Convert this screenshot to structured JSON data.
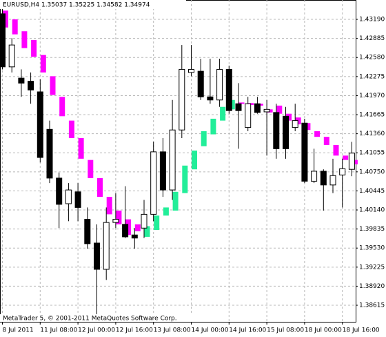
{
  "chart_data": {
    "type": "candlestick",
    "title": "EURUSD,H4  1.35037 1.35225 1.34582 1.34974",
    "footer": "MetaTrader 5, © 2001-2011 MetaQuotes Software Corp.",
    "categories": [
      "8 Jul 2011",
      null,
      null,
      null,
      "11 Jul 08:00",
      null,
      null,
      null,
      "12 Jul 00:00",
      null,
      null,
      null,
      "12 Jul 16:00",
      null,
      null,
      null,
      "13 Jul 08:00",
      null,
      null,
      null,
      "14 Jul 00:00",
      null,
      null,
      null,
      "14 Jul 16:00",
      null,
      null,
      null,
      "15 Jul 08:00",
      null,
      null,
      null,
      "18 Jul 00:00",
      null,
      null,
      null,
      "18 Jul 16:00",
      null
    ],
    "candles": {
      "up_color": "#ffffff",
      "down_color": "#000000",
      "line_color": "#000000",
      "open": [
        1.4328,
        1.4243,
        1.4225,
        1.422,
        1.4203,
        1.4143,
        1.4065,
        1.4024,
        1.4043,
        1.3999,
        1.3961,
        1.3919,
        1.3994,
        1.3991,
        1.3974,
        1.3985,
        1.4007,
        1.4107,
        1.4046,
        1.4142,
        1.4234,
        1.4236,
        1.4195,
        1.419,
        1.4239,
        1.4184,
        1.4146,
        1.4184,
        1.4171,
        1.417,
        1.4164,
        1.4146,
        1.4153,
        1.406,
        1.4076,
        1.4054,
        1.407,
        1.4079
      ],
      "high": [
        1.4339,
        1.4289,
        1.4239,
        1.4234,
        1.4223,
        1.4157,
        1.4074,
        1.4057,
        1.4057,
        1.4018,
        1.3991,
        1.4018,
        1.4041,
        1.4052,
        1.3985,
        1.403,
        1.4123,
        1.4129,
        1.419,
        1.4278,
        1.4278,
        1.4256,
        1.4256,
        1.4256,
        1.4245,
        1.4217,
        1.4195,
        1.4195,
        1.419,
        1.4184,
        1.4179,
        1.4184,
        1.416,
        1.4112,
        1.4079,
        1.4096,
        1.4096,
        1.4123
      ],
      "low": [
        1.4239,
        1.4234,
        1.4195,
        1.4184,
        1.409,
        1.4057,
        1.3985,
        1.3996,
        1.3996,
        1.3952,
        1.3835,
        1.3902,
        1.3985,
        1.3969,
        1.3952,
        1.3969,
        1.3996,
        1.4035,
        1.403,
        1.4129,
        1.4228,
        1.419,
        1.4184,
        1.4179,
        1.4168,
        1.4112,
        1.414,
        1.4168,
        1.4101,
        1.4096,
        1.4096,
        1.414,
        1.4057,
        1.4057,
        1.4013,
        1.4041,
        1.4018,
        1.4068
      ],
      "close": [
        1.4243,
        1.4278,
        1.4217,
        1.4206,
        1.4098,
        1.4065,
        1.4023,
        1.4046,
        1.4018,
        1.396,
        1.3919,
        1.3994,
        1.3999,
        1.3971,
        1.3969,
        1.4007,
        1.4107,
        1.4046,
        1.4142,
        1.4239,
        1.4239,
        1.4195,
        1.419,
        1.4239,
        1.4173,
        1.4173,
        1.4184,
        1.417,
        1.4175,
        1.4112,
        1.4112,
        1.4157,
        1.406,
        1.4076,
        1.4054,
        1.4069,
        1.408,
        1.4105
      ]
    },
    "overlay": {
      "up_color": "#22ee99",
      "down_color": "#ff00ff",
      "open": [
        1.4333,
        1.4319,
        1.43,
        1.4286,
        1.4262,
        1.4228,
        1.4195,
        1.4157,
        1.4129,
        1.4094,
        1.4065,
        1.4035,
        1.4013,
        1.3999,
        1.3991,
        1.3971,
        1.3982,
        1.4005,
        1.4013,
        1.4041,
        1.4079,
        1.4116,
        1.4135,
        1.4157,
        1.4175,
        1.4186,
        1.4185,
        1.4184,
        1.4175,
        1.4181,
        1.4168,
        1.4162,
        1.4153,
        1.414,
        1.4131,
        1.4118,
        1.4101,
        1.4094
      ],
      "close": [
        1.4306,
        1.4295,
        1.4273,
        1.4259,
        1.4234,
        1.4198,
        1.4164,
        1.4129,
        1.4096,
        1.4065,
        1.4035,
        1.4007,
        1.3991,
        1.3974,
        1.398,
        1.3988,
        1.4005,
        1.4018,
        1.4043,
        1.4085,
        1.4109,
        1.414,
        1.416,
        1.4179,
        1.419,
        1.4184,
        1.4182,
        1.4181,
        1.417,
        1.4168,
        1.4157,
        1.4151,
        1.4142,
        1.4131,
        1.4118,
        1.4101,
        1.4094,
        1.4087
      ]
    },
    "ylim": [
      1.3835,
      1.435
    ],
    "yticks": [
      {
        "value": 1.38615,
        "label": "1.38615"
      },
      {
        "value": 1.3892,
        "label": "1.38920"
      },
      {
        "value": 1.39225,
        "label": "1.39225"
      },
      {
        "value": 1.3953,
        "label": "1.39530"
      },
      {
        "value": 1.39835,
        "label": "1.39835"
      },
      {
        "value": 1.4014,
        "label": "1.40140"
      },
      {
        "value": 1.40445,
        "label": "1.40445"
      },
      {
        "value": 1.4075,
        "label": "1.40750"
      },
      {
        "value": 1.41055,
        "label": "1.41055"
      },
      {
        "value": 1.4136,
        "label": "1.41360"
      },
      {
        "value": 1.41665,
        "label": "1.41665"
      },
      {
        "value": 1.4197,
        "label": "1.41970"
      },
      {
        "value": 1.42275,
        "label": "1.42275"
      },
      {
        "value": 1.4258,
        "label": "1.42580"
      },
      {
        "value": 1.42885,
        "label": "1.42885"
      },
      {
        "value": 1.4319,
        "label": "1.43190"
      }
    ],
    "grid": true
  }
}
